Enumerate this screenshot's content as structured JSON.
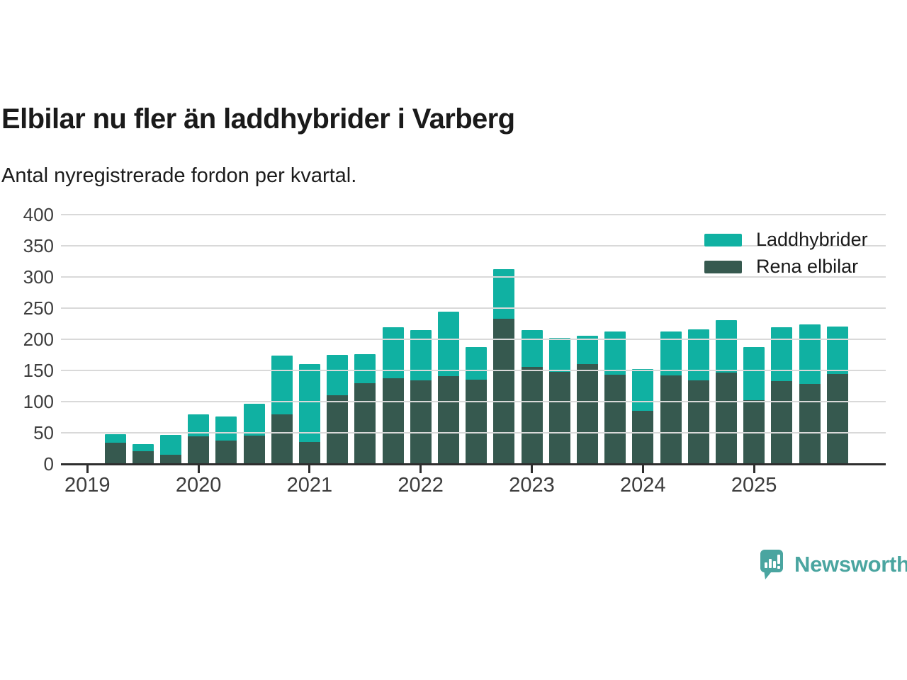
{
  "chart_data": {
    "type": "bar",
    "stacked": true,
    "title": "Elbilar nu fler än laddhybrider i Varberg",
    "subtitle": "Antal nyregistrerade fordon per kvartal.",
    "xlabel": "",
    "ylabel": "",
    "ylim": [
      0,
      400
    ],
    "yticks": [
      0,
      50,
      100,
      150,
      200,
      250,
      300,
      350,
      400
    ],
    "grid": true,
    "legend_position": "top-right",
    "x_year_labels": [
      "2019",
      "2020",
      "2021",
      "2022",
      "2023",
      "2024",
      "2025"
    ],
    "categories": [
      "2019 Q2",
      "2019 Q3",
      "2019 Q4",
      "2020 Q1",
      "2020 Q2",
      "2020 Q3",
      "2020 Q4",
      "2021 Q1",
      "2021 Q2",
      "2021 Q3",
      "2021 Q4",
      "2022 Q1",
      "2022 Q2",
      "2022 Q3",
      "2022 Q4",
      "2023 Q1",
      "2023 Q2",
      "2023 Q3",
      "2023 Q4",
      "2024 Q1",
      "2024 Q2",
      "2024 Q3",
      "2024 Q4",
      "2025 Q1",
      "2025 Q2",
      "2025 Q3",
      "2025 Q4"
    ],
    "series": [
      {
        "name": "Laddhybrider",
        "color": "#10b1a2",
        "values": [
          14,
          12,
          32,
          35,
          39,
          52,
          95,
          125,
          65,
          47,
          82,
          81,
          103,
          52,
          80,
          59,
          54,
          46,
          70,
          67,
          71,
          82,
          84,
          85,
          86,
          96,
          76
        ]
      },
      {
        "name": "Rena elbilar",
        "color": "#36594f",
        "values": [
          34,
          20,
          15,
          44,
          37,
          45,
          79,
          35,
          110,
          129,
          137,
          134,
          141,
          135,
          233,
          156,
          148,
          160,
          143,
          85,
          142,
          134,
          147,
          102,
          133,
          128,
          144
        ]
      }
    ]
  },
  "footer": {
    "brand": "Newsworthy",
    "brand_color": "#4aa5a0"
  }
}
